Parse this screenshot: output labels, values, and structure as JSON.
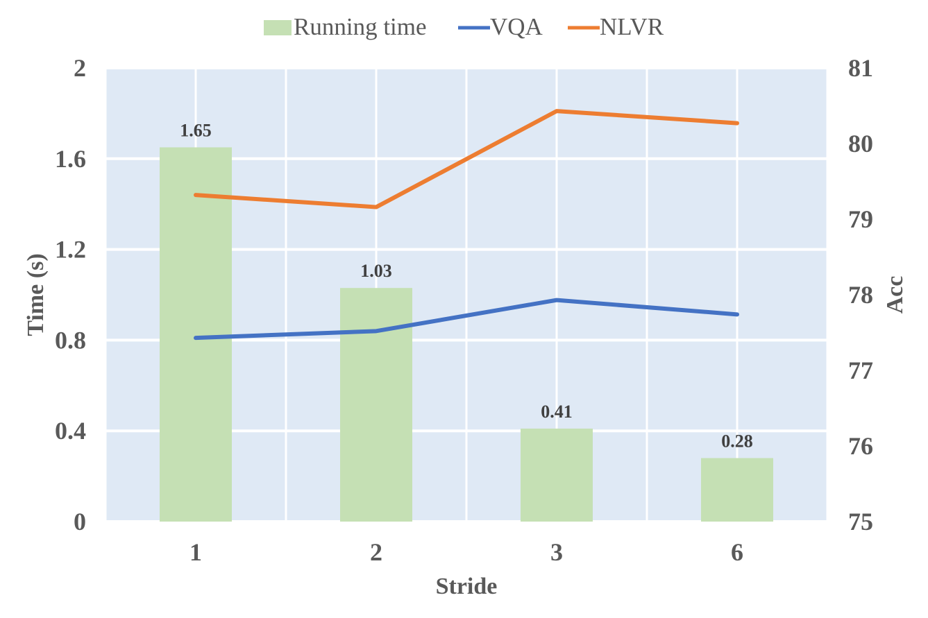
{
  "chart_data": {
    "type": "bar",
    "categories": [
      "1",
      "2",
      "3",
      "6"
    ],
    "xlabel": "Stride",
    "ylabel_left": "Time (s)",
    "ylabel_right": "Acc",
    "ylim_left": [
      0,
      2
    ],
    "yticks_left": [
      "0",
      "0.4",
      "0.8",
      "1.2",
      "1.6",
      "2"
    ],
    "ylim_right": [
      75,
      81
    ],
    "yticks_right": [
      "75",
      "76",
      "77",
      "78",
      "79",
      "80",
      "81"
    ],
    "grid": true,
    "legend_position": "top",
    "series": [
      {
        "name": "Running time",
        "type": "bar",
        "axis": "left",
        "color": "#c5e0b4",
        "values": [
          1.65,
          1.03,
          0.41,
          0.28
        ],
        "labels": [
          "1.65",
          "1.03",
          "0.41",
          "0.28"
        ]
      },
      {
        "name": "VQA",
        "type": "line",
        "axis": "right",
        "color": "#4472c4",
        "values": [
          77.43,
          77.52,
          77.93,
          77.74
        ]
      },
      {
        "name": "NLVR",
        "type": "line",
        "axis": "right",
        "color": "#ed7d31",
        "values": [
          79.32,
          79.16,
          80.43,
          80.27
        ]
      }
    ],
    "plot_background": "#dfe9f5",
    "grid_color": "#ffffff"
  }
}
